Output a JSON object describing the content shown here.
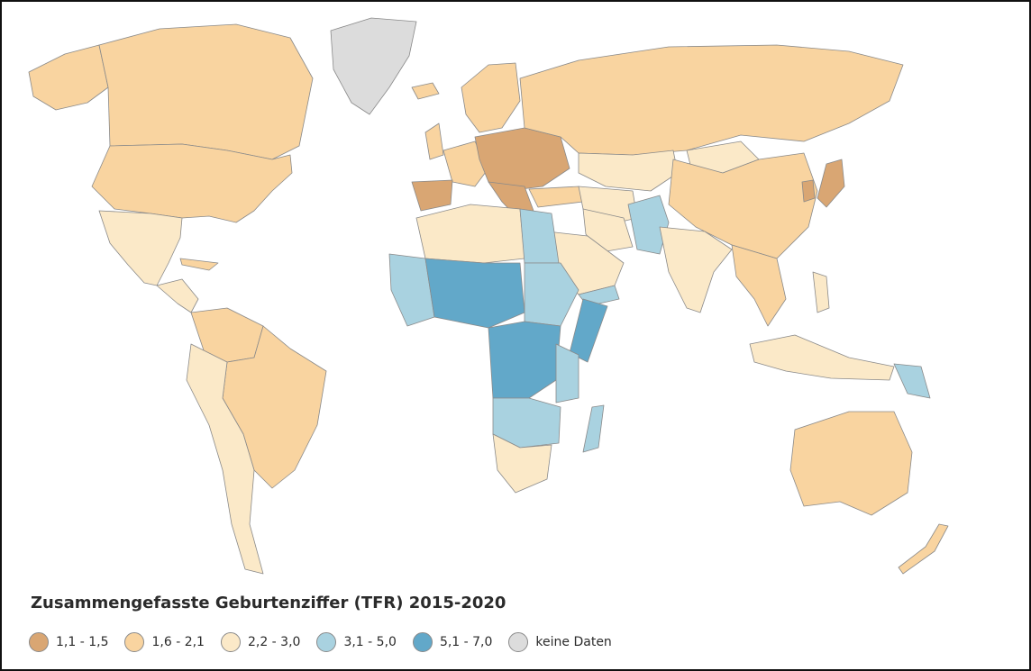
{
  "title": "Zusammengefasste Geburtenziffer (TFR) 2015-2020",
  "colors": {
    "c1": "#d9a673",
    "c2": "#f9d4a0",
    "c3": "#fbe9c8",
    "c4": "#a9d2e0",
    "c5": "#62a8c9",
    "na": "#dcdcdc",
    "ocean": "#ffffff",
    "border": "#8a8a8a"
  },
  "legend": [
    {
      "label": "1,1 - 1,5",
      "color": "#d9a673"
    },
    {
      "label": "1,6 - 2,1",
      "color": "#f9d4a0"
    },
    {
      "label": "2,2 - 3,0",
      "color": "#fbe9c8"
    },
    {
      "label": "3,1 - 5,0",
      "color": "#a9d2e0"
    },
    {
      "label": "5,1 - 7,0",
      "color": "#62a8c9"
    },
    {
      "label": "keine Daten",
      "color": "#dcdcdc"
    }
  ]
}
